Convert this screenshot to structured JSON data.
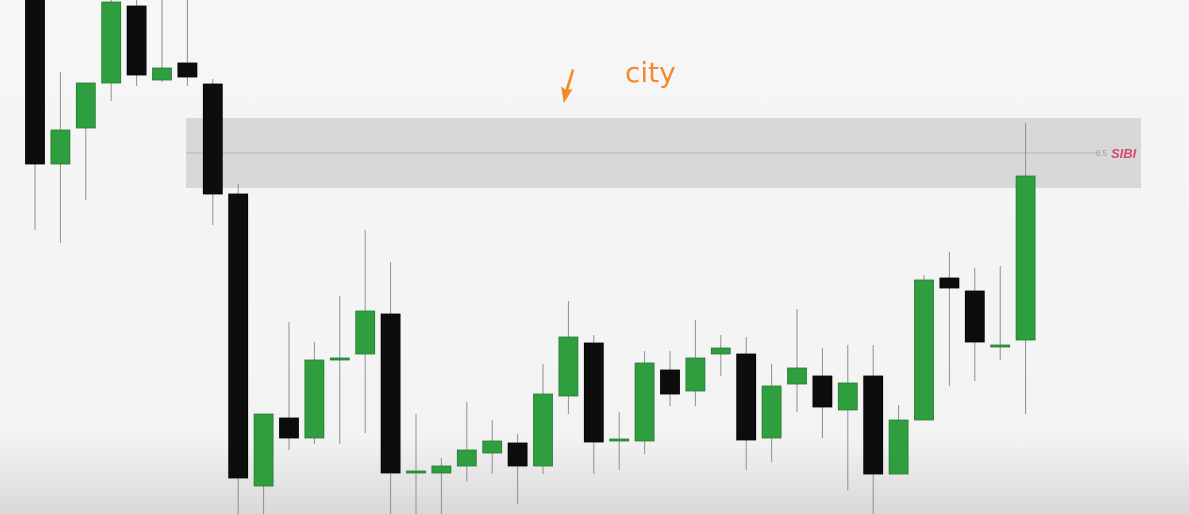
{
  "chart_data": {
    "type": "candlestick",
    "title": "",
    "xlabel": "",
    "ylabel": "",
    "ylim": [
      0,
      514
    ],
    "annotations": [
      {
        "text": "city",
        "color": "#f08a2c"
      },
      {
        "text": "SIBI",
        "color": "#d34a6a"
      },
      {
        "text": "0.5",
        "color": "#9a9a9a"
      }
    ],
    "zone": {
      "low": 326,
      "high": 396,
      "midline": 361,
      "color": "#d8d8db"
    },
    "candles": [
      {
        "o": 514,
        "h": 514,
        "l": 284,
        "c": 350,
        "color": "black"
      },
      {
        "o": 350,
        "h": 442,
        "l": 271,
        "c": 384,
        "color": "green"
      },
      {
        "o": 386,
        "h": 430,
        "l": 314,
        "c": 431,
        "color": "green"
      },
      {
        "o": 431,
        "h": 514,
        "l": 413,
        "c": 512,
        "color": "green"
      },
      {
        "o": 508,
        "h": 514,
        "l": 428,
        "c": 439,
        "color": "black"
      },
      {
        "o": 434,
        "h": 514,
        "l": 432,
        "c": 446,
        "color": "green"
      },
      {
        "o": 451,
        "h": 514,
        "l": 428,
        "c": 437,
        "color": "black"
      },
      {
        "o": 430,
        "h": 435,
        "l": 289,
        "c": 320,
        "color": "black"
      },
      {
        "o": 320,
        "h": 330,
        "l": 0,
        "c": 36,
        "color": "black"
      },
      {
        "o": 28,
        "h": 100,
        "l": 0,
        "c": 100,
        "color": "green"
      },
      {
        "o": 96,
        "h": 192,
        "l": 64,
        "c": 76,
        "color": "black"
      },
      {
        "o": 76,
        "h": 172,
        "l": 70,
        "c": 154,
        "color": "green"
      },
      {
        "o": 154,
        "h": 218,
        "l": 70,
        "c": 156,
        "color": "green"
      },
      {
        "o": 160,
        "h": 284,
        "l": 81,
        "c": 203,
        "color": "green"
      },
      {
        "o": 200,
        "h": 252,
        "l": 0,
        "c": 41,
        "color": "black"
      },
      {
        "o": 43,
        "h": 100,
        "l": 0,
        "c": 43,
        "color": "doji"
      },
      {
        "o": 41,
        "h": 56,
        "l": 0,
        "c": 48,
        "color": "green"
      },
      {
        "o": 48,
        "h": 112,
        "l": 32,
        "c": 64,
        "color": "green"
      },
      {
        "o": 61,
        "h": 94,
        "l": 40,
        "c": 73,
        "color": "green"
      },
      {
        "o": 71,
        "h": 80,
        "l": 10,
        "c": 48,
        "color": "black"
      },
      {
        "o": 48,
        "h": 150,
        "l": 40,
        "c": 120,
        "color": "green"
      },
      {
        "o": 118,
        "h": 213,
        "l": 100,
        "c": 177,
        "color": "green"
      },
      {
        "o": 171,
        "h": 179,
        "l": 40,
        "c": 72,
        "color": "black"
      },
      {
        "o": 75,
        "h": 102,
        "l": 44,
        "c": 75,
        "color": "doji"
      },
      {
        "o": 73,
        "h": 163,
        "l": 60,
        "c": 151,
        "color": "green"
      },
      {
        "o": 144,
        "h": 163,
        "l": 108,
        "c": 120,
        "color": "black"
      },
      {
        "o": 123,
        "h": 194,
        "l": 108,
        "c": 156,
        "color": "green"
      },
      {
        "o": 160,
        "h": 179,
        "l": 138,
        "c": 166,
        "color": "green"
      },
      {
        "o": 160,
        "h": 177,
        "l": 44,
        "c": 74,
        "color": "black"
      },
      {
        "o": 76,
        "h": 150,
        "l": 52,
        "c": 128,
        "color": "green"
      },
      {
        "o": 130,
        "h": 205,
        "l": 102,
        "c": 146,
        "color": "green"
      },
      {
        "o": 138,
        "h": 166,
        "l": 76,
        "c": 107,
        "color": "black"
      },
      {
        "o": 104,
        "h": 169,
        "l": 24,
        "c": 131,
        "color": "green"
      },
      {
        "o": 138,
        "h": 169,
        "l": 0,
        "c": 40,
        "color": "black"
      },
      {
        "o": 40,
        "h": 109,
        "l": 40,
        "c": 94,
        "color": "green"
      },
      {
        "o": 94,
        "h": 239,
        "l": 94,
        "c": 234,
        "color": "green"
      },
      {
        "o": 236,
        "h": 262,
        "l": 128,
        "c": 226,
        "color": "black"
      },
      {
        "o": 223,
        "h": 246,
        "l": 133,
        "c": 172,
        "color": "black"
      },
      {
        "o": 167,
        "h": 248,
        "l": 154,
        "c": 169,
        "color": "green"
      },
      {
        "o": 174,
        "h": 391,
        "l": 100,
        "c": 338,
        "color": "green"
      }
    ]
  }
}
